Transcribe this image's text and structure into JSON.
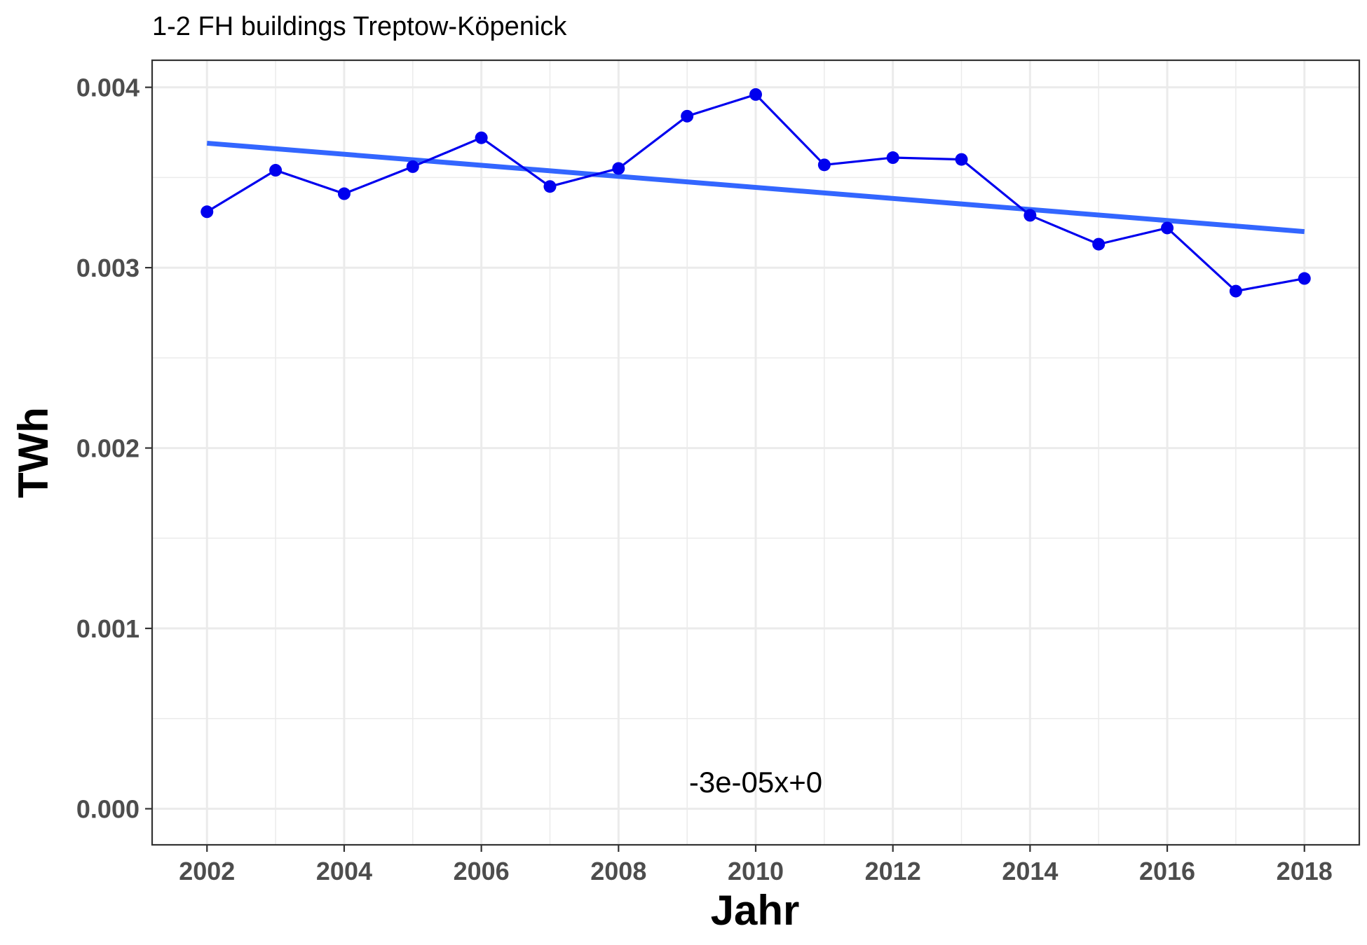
{
  "chart_data": {
    "type": "line",
    "title": "1-2 FH buildings Treptow-Köpenick",
    "xlabel": "Jahr",
    "ylabel": "TWh",
    "xlim": [
      2001.2,
      2018.8
    ],
    "ylim": [
      -0.0002,
      0.00415
    ],
    "x_ticks": [
      2002,
      2004,
      2006,
      2008,
      2010,
      2012,
      2014,
      2016,
      2018
    ],
    "y_ticks": [
      0.0,
      0.001,
      0.002,
      0.003,
      0.004
    ],
    "y_tick_labels": [
      "0.000",
      "0.001",
      "0.002",
      "0.003",
      "0.004"
    ],
    "grid": true,
    "series": [
      {
        "x": [
          2002,
          2003,
          2004,
          2005,
          2006,
          2007,
          2008,
          2009,
          2010,
          2011,
          2012,
          2013,
          2014,
          2015,
          2016,
          2017,
          2018
        ],
        "values": [
          0.00331,
          0.00354,
          0.00341,
          0.00356,
          0.00372,
          0.00345,
          0.00355,
          0.00384,
          0.00396,
          0.00357,
          0.00361,
          0.0036,
          0.00329,
          0.00313,
          0.00322,
          0.00287,
          0.00294
        ],
        "color": "#0000ee"
      }
    ],
    "trendline": {
      "x": [
        2002,
        2018
      ],
      "values": [
        0.00369,
        0.0032
      ],
      "color": "#3366ff"
    },
    "annotation": {
      "text": "-3e-05x+0",
      "x": 2010,
      "y": 0.00015
    }
  }
}
